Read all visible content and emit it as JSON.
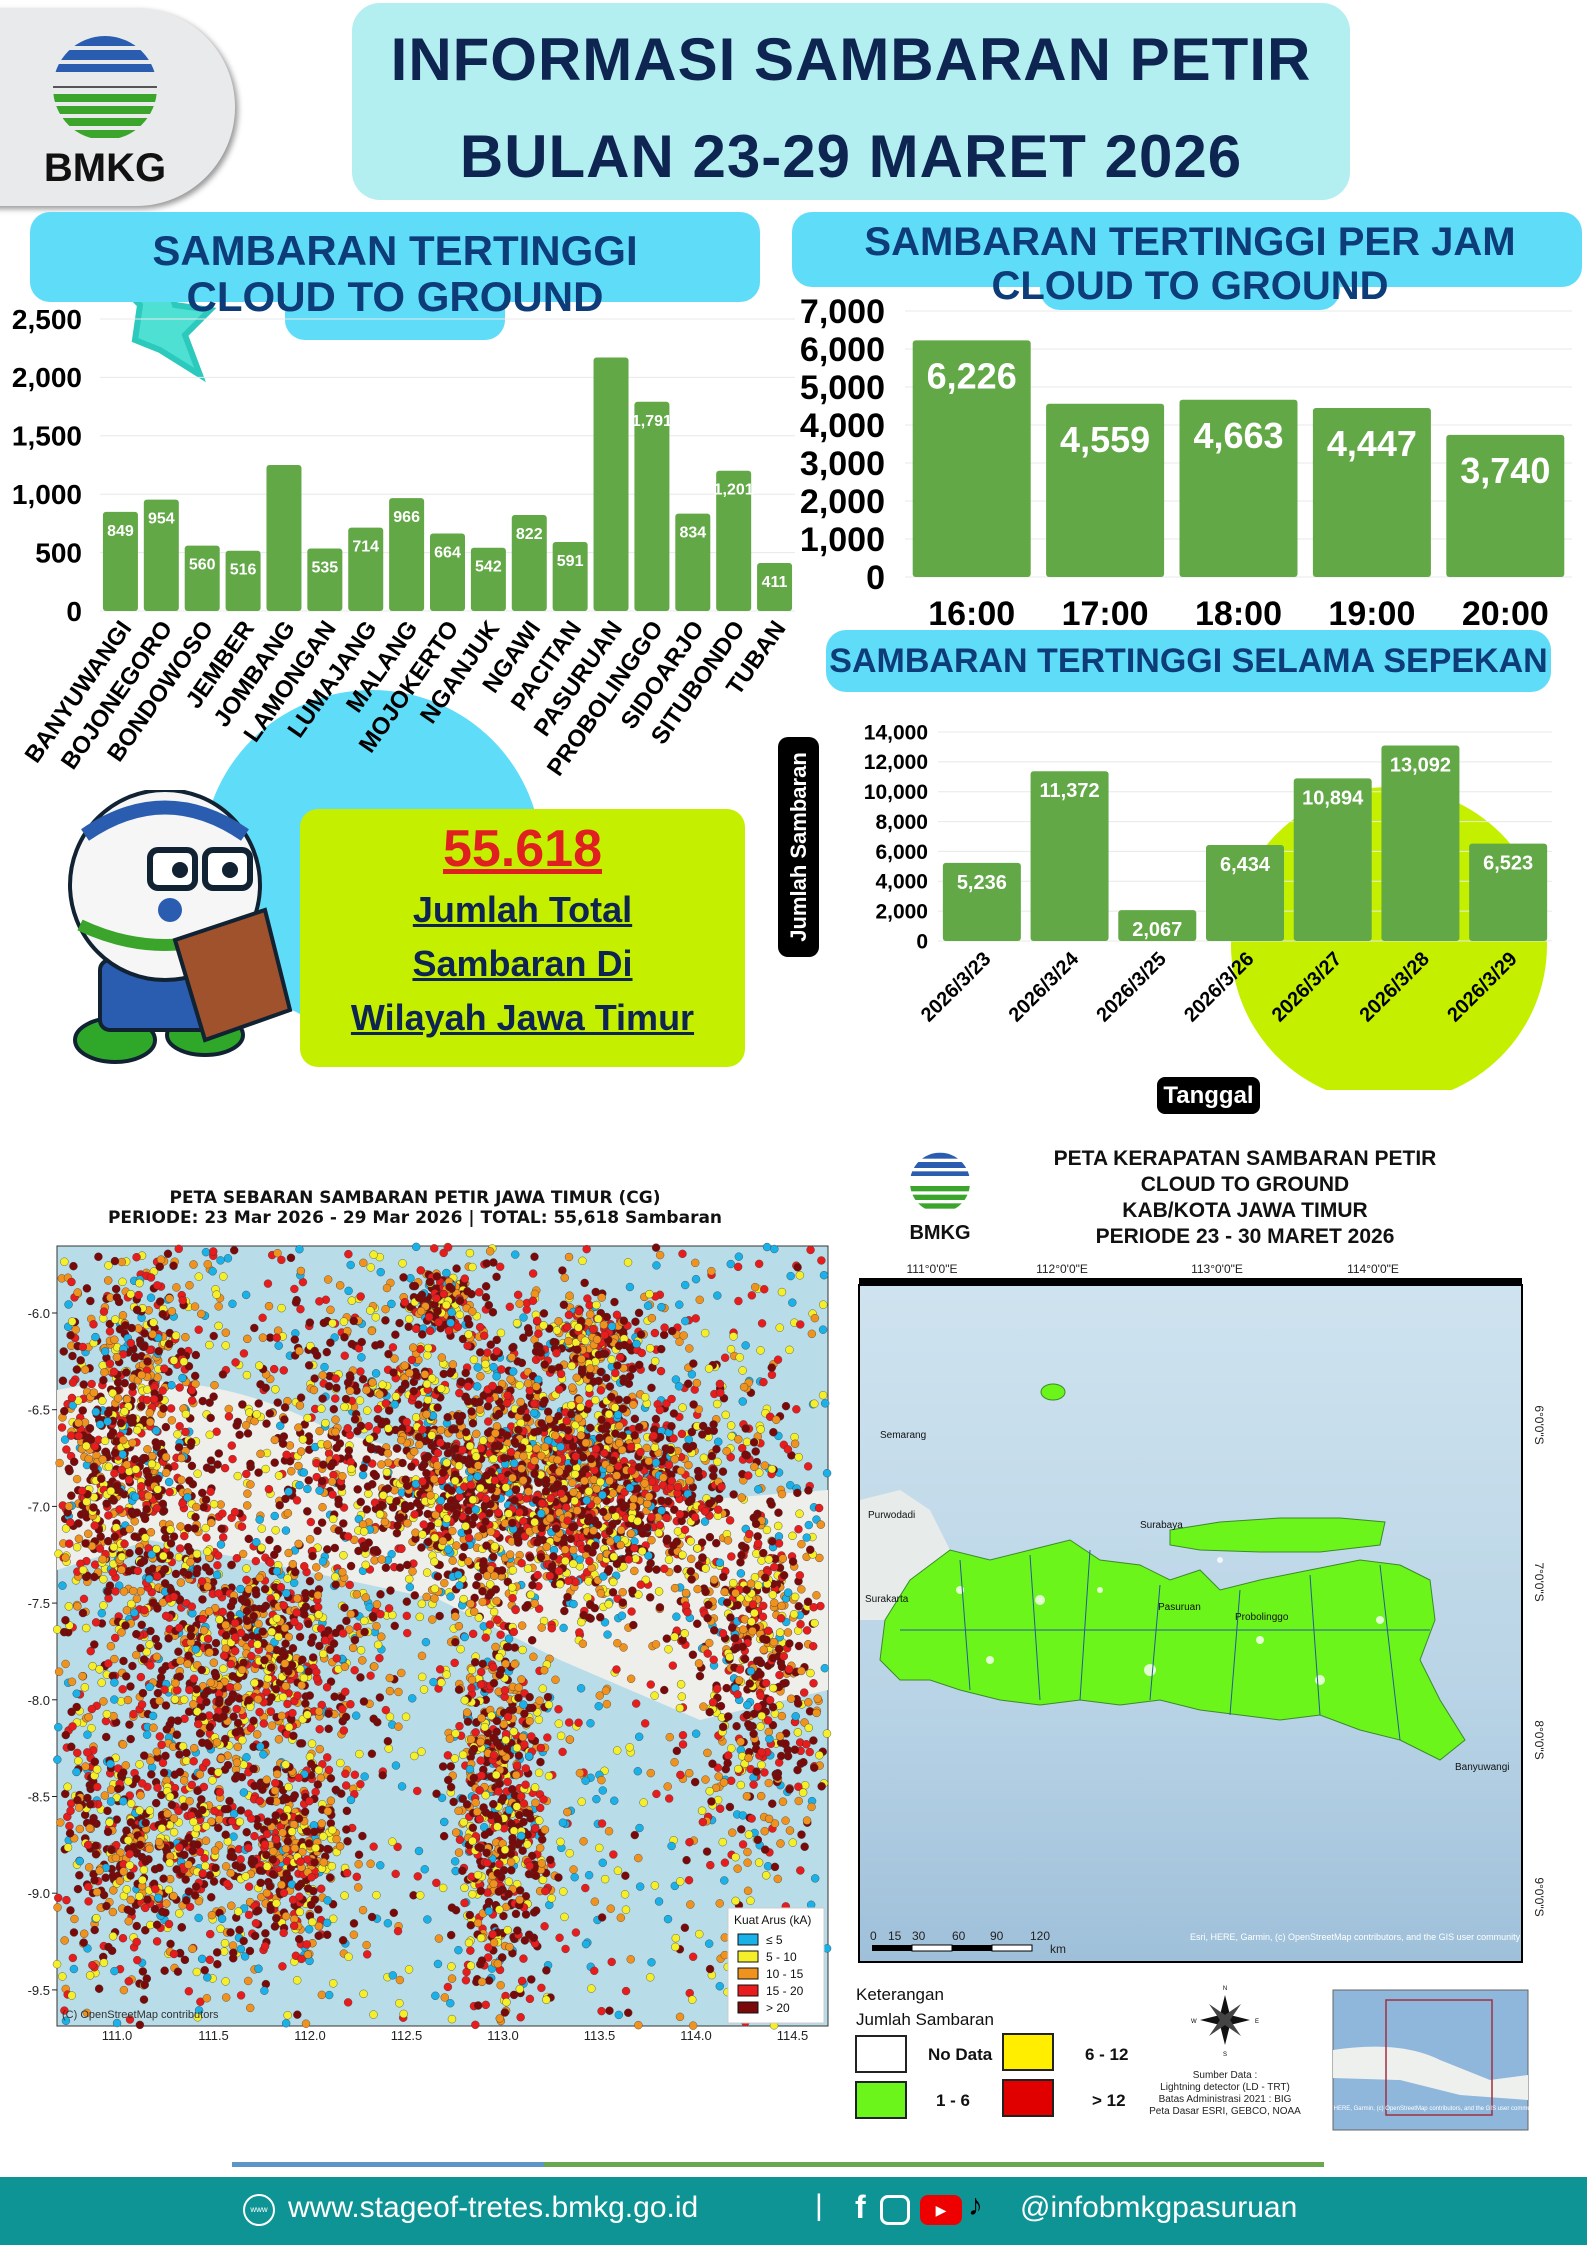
{
  "logo": {
    "text": "BMKG"
  },
  "title": {
    "line1": "INFORMASI SAMBARAN PETIR",
    "line2": "BULAN 23-29 MARET 2026"
  },
  "colors": {
    "bar": "#62a846",
    "title": "#0d2550",
    "header_bg": "#5fdcf8",
    "accent_lime": "#c4f000",
    "total_red": "#e02020",
    "footer": "#0e9494"
  },
  "chart_data": [
    {
      "type": "bar",
      "title": "SAMBARAN TERTINGGI  CLOUD TO GROUND",
      "ylim": [
        0,
        2500
      ],
      "yticks": [
        "0",
        "500",
        "1,000",
        "1,500",
        "2,000",
        "2,500"
      ],
      "categories": [
        "BANYUWANGI",
        "BOJONEGORO",
        "BONDOWOSO",
        "JEMBER",
        "JOMBANG",
        "LAMONGAN",
        "LUMAJANG",
        "MALANG",
        "MOJOKERTO",
        "NGANJUK",
        "NGAWI",
        "PACITAN",
        "PASURUAN",
        "PROBOLINGGO",
        "SIDOARJO",
        "SITUBONDO",
        "TUBAN"
      ],
      "values": [
        849,
        954,
        560,
        516,
        1250,
        535,
        714,
        966,
        664,
        542,
        822,
        591,
        2170,
        1791,
        834,
        1201,
        411
      ],
      "data_labels": [
        "849",
        "954",
        "560",
        "516",
        "",
        "535",
        "714",
        "966",
        "664",
        "542",
        "822",
        "591",
        "",
        "1,791",
        "834",
        "1,201",
        "411"
      ],
      "grid": true
    },
    {
      "type": "bar",
      "title": "SAMBARAN TERTINGGI PER JAM CLOUD TO GROUND",
      "ylim": [
        0,
        7000
      ],
      "yticks": [
        "0",
        "1,000",
        "2,000",
        "3,000",
        "4,000",
        "5,000",
        "6,000",
        "7,000"
      ],
      "categories": [
        "16:00",
        "17:00",
        "18:00",
        "19:00",
        "20:00"
      ],
      "values": [
        6226,
        4559,
        4663,
        4447,
        3740
      ],
      "data_labels": [
        "6,226",
        "4,559",
        "4,663",
        "4,447",
        "3,740"
      ],
      "grid": true
    },
    {
      "type": "bar",
      "title": "SAMBARAN TERTINGGI SELAMA SEPEKAN",
      "xlabel": "Tanggal",
      "ylabel": "Jumlah Sambaran",
      "ylim": [
        0,
        14000
      ],
      "yticks": [
        "0",
        "2,000",
        "4,000",
        "6,000",
        "8,000",
        "10,000",
        "12,000",
        "14,000"
      ],
      "categories": [
        "2026/3/23",
        "2026/3/24",
        "2026/3/25",
        "2026/3/26",
        "2026/3/27",
        "2026/3/28",
        "2026/3/29"
      ],
      "values": [
        5236,
        11372,
        2067,
        6434,
        10894,
        13092,
        6523
      ],
      "data_labels": [
        "5,236",
        "11,372",
        "2,067",
        "6,434",
        "10,894",
        "13,092",
        "6,523"
      ],
      "grid": true
    }
  ],
  "total": {
    "value": "55.618",
    "line1": "Jumlah Total",
    "line2": "Sambaran Di",
    "line3": "Wilayah Jawa Timur"
  },
  "scatter_map": {
    "title": "PETA SEBARAN SAMBARAN PETIR JAWA TIMUR (CG)",
    "subtitle": "PERIODE: 23 Mar 2026 - 29 Mar 2026 | TOTAL: 55,618 Sambaran",
    "yticks": [
      "-6.0",
      "-6.5",
      "-7.0",
      "-7.5",
      "-8.0",
      "-8.5",
      "-9.0",
      "-9.5"
    ],
    "xticks": [
      "111.0",
      "111.5",
      "112.0",
      "112.5",
      "113.0",
      "113.5",
      "114.0",
      "114.5"
    ],
    "attribution": "(C) OpenStreetMap contributors",
    "legend": {
      "title": "Kuat Arus (kA)",
      "items": [
        {
          "label": "≤ 5",
          "color": "#1ab0e8"
        },
        {
          "label": "5 - 10",
          "color": "#f5ef2a"
        },
        {
          "label": "10 - 15",
          "color": "#f0921e"
        },
        {
          "label": "15 - 20",
          "color": "#e81c1c"
        },
        {
          "label": "> 20",
          "color": "#7a0a0a"
        }
      ]
    }
  },
  "density_map": {
    "logo_text": "BMKG",
    "title_lines": [
      "PETA KERAPATAN SAMBARAN PETIR",
      "CLOUD TO GROUND",
      "KAB/KOTA JAWA TIMUR",
      "PERIODE 23 - 30 MARET 2026"
    ],
    "lon_labels": [
      "111°0'0\"E",
      "112°0'0\"E",
      "113°0'0\"E",
      "114°0'0\"E"
    ],
    "lat_labels": [
      "6°0'0\"S",
      "7°0'0\"S",
      "8°0'0\"S",
      "9°0'0\"S"
    ],
    "scale_labels": [
      "0",
      "15",
      "30",
      "60",
      "90",
      "120"
    ],
    "scale_unit": "km",
    "place_labels": [
      "Surabaya",
      "Pasuruan",
      "Probolinggo",
      "Semarang",
      "Surakarta",
      "Purwodadi",
      "Banyuwangi"
    ],
    "attribution": "Esri, HERE, Garmin, (c) OpenStreetMap contributors, and the GIS user community",
    "legend": {
      "title1": "Keterangan",
      "title2": "Jumlah Sambaran",
      "items": [
        {
          "label": "No Data",
          "color": "#ffffff"
        },
        {
          "label": "6 - 12",
          "color": "#ffee00"
        },
        {
          "label": "1 - 6",
          "color": "#6cf51a"
        },
        {
          "label": "> 12",
          "color": "#e00000"
        }
      ]
    },
    "compass": {
      "n": "N",
      "s": "S",
      "e": "E",
      "w": "W"
    },
    "source_lines": [
      "Sumber Data :",
      "Lightning detector (LD - TRT)",
      "Batas Administrasi 2021  : BIG",
      "Peta Dasar ESRI, GEBCO, NOAA"
    ],
    "inset_attribution": "Esri, HERE, Garmin, (c) OpenStreetMap contributors, and the GIS user community"
  },
  "footer": {
    "website": "www.stageof-tretes.bmkg.go.id",
    "separator": "|",
    "social": "@infobmkgpasuruan",
    "www_icon_text": "www"
  }
}
